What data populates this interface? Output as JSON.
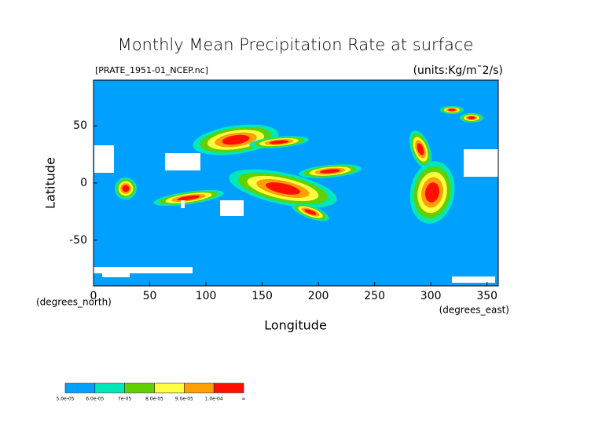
{
  "chart_data": {
    "type": "contour",
    "title": "Monthly Mean Precipitation Rate at surface",
    "subtitle": "[PRATE_1951-01_NCEP.nc]",
    "units": "(units:Kg/m¯2/s)",
    "x_label": "Longitude",
    "x_unit": "(degrees_east)",
    "y_label": "Latitude",
    "y_unit": "(degrees_north)",
    "xlim": [
      0,
      360
    ],
    "xticks": [
      0,
      50,
      100,
      150,
      200,
      250,
      300,
      350
    ],
    "ylim": [
      -90,
      90
    ],
    "yticks": [
      -50,
      0,
      50
    ],
    "colorbar": {
      "labels": [
        "5.0e-05",
        "6.0e-05",
        "7e-05",
        "8.0e-05",
        "9.0e-05",
        "1.0e-04",
        "∞"
      ],
      "colors": [
        "#00a0ff",
        "#00e8b8",
        "#60d000",
        "#ffff40",
        "#ffa000",
        "#ff1000"
      ]
    }
  }
}
